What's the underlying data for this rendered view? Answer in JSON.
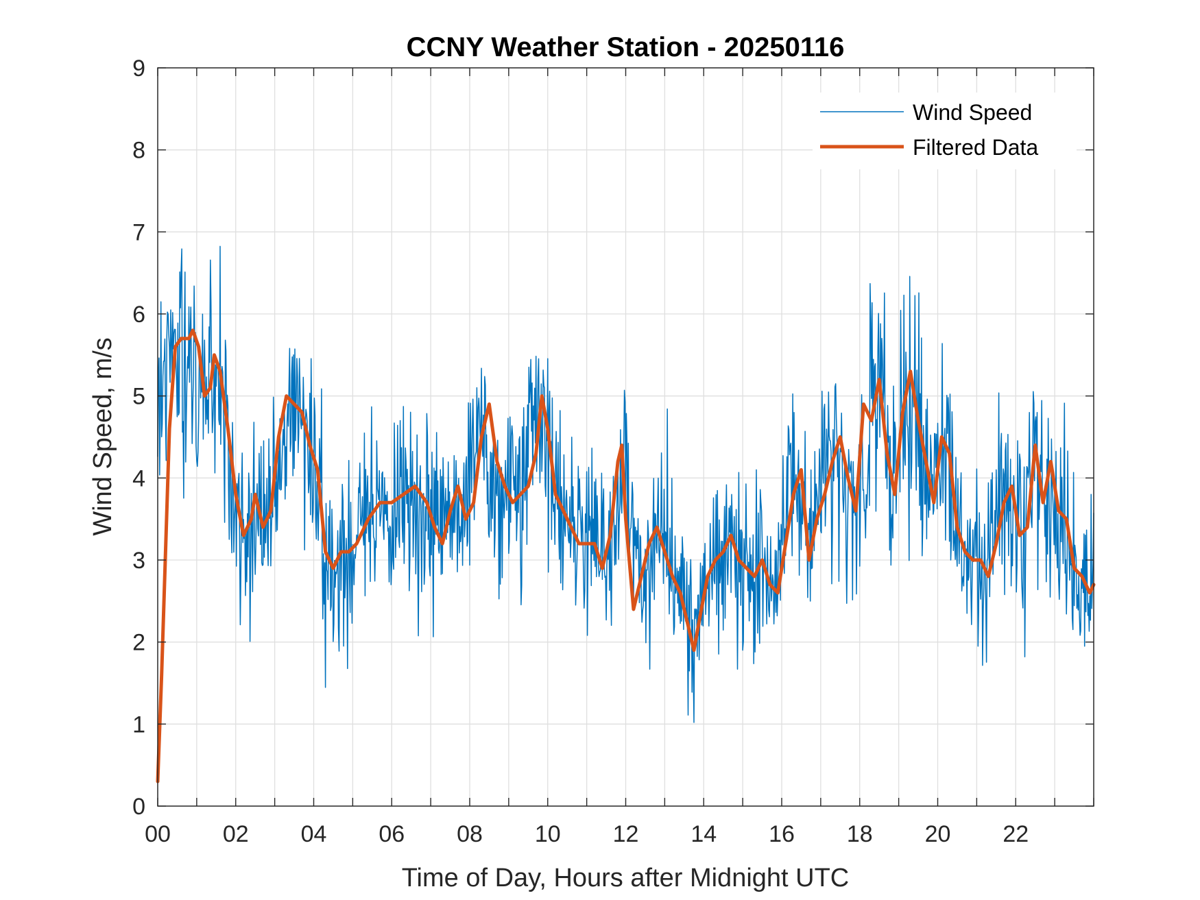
{
  "chart_data": {
    "type": "line",
    "title": "CCNY Weather Station - 20250116",
    "xlabel": "Time of Day, Hours after Midnight UTC",
    "ylabel": "Wind Speed, m/s",
    "xlim": [
      0,
      24
    ],
    "ylim": [
      0,
      9
    ],
    "grid": true,
    "legend_location": "top-right",
    "x_ticks": [
      0,
      2,
      4,
      6,
      8,
      10,
      12,
      14,
      16,
      18,
      20,
      22
    ],
    "x_tick_labels": [
      "00",
      "02",
      "04",
      "06",
      "08",
      "10",
      "12",
      "14",
      "16",
      "18",
      "20",
      "22"
    ],
    "y_ticks": [
      0,
      1,
      2,
      3,
      4,
      5,
      6,
      7,
      8,
      9
    ],
    "y_tick_labels": [
      "0",
      "1",
      "2",
      "3",
      "4",
      "5",
      "6",
      "7",
      "8",
      "9"
    ],
    "series": [
      {
        "name": "Wind Speed",
        "color": "#0072BD",
        "style": "thin-noisy",
        "x": [
          0,
          0.25,
          0.5,
          0.75,
          1,
          1.25,
          1.5,
          1.75,
          2,
          2.25,
          2.5,
          2.75,
          3,
          3.25,
          3.5,
          3.75,
          4,
          4.25,
          4.5,
          4.75,
          5,
          5.25,
          5.5,
          5.75,
          6,
          6.25,
          6.5,
          6.75,
          7,
          7.25,
          7.5,
          7.75,
          8,
          8.25,
          8.5,
          8.75,
          9,
          9.25,
          9.5,
          9.75,
          10,
          10.25,
          10.5,
          10.75,
          11,
          11.25,
          11.5,
          11.75,
          12,
          12.25,
          12.5,
          12.75,
          13,
          13.25,
          13.5,
          13.75,
          14,
          14.25,
          14.5,
          14.75,
          15,
          15.25,
          15.5,
          15.75,
          16,
          16.25,
          16.5,
          16.75,
          17,
          17.25,
          17.5,
          17.75,
          18,
          18.25,
          18.5,
          18.75,
          19,
          19.25,
          19.5,
          19.75,
          20,
          20.25,
          20.5,
          20.75,
          21,
          21.25,
          21.5,
          21.75,
          22,
          22.25,
          22.5,
          22.75,
          23,
          23.25,
          23.5,
          23.75,
          24
        ],
        "values": [
          5.0,
          5.4,
          5.6,
          5.7,
          5.3,
          5.0,
          5.3,
          4.5,
          3.6,
          3.3,
          3.5,
          3.4,
          3.9,
          4.7,
          4.9,
          4.7,
          4.3,
          3.2,
          2.9,
          3.0,
          3.1,
          3.3,
          3.5,
          3.6,
          3.7,
          3.8,
          3.7,
          3.5,
          3.3,
          3.7,
          3.8,
          3.5,
          4.2,
          4.8,
          4.1,
          3.8,
          3.8,
          3.9,
          4.4,
          4.9,
          4.3,
          3.7,
          3.5,
          3.3,
          3.2,
          3.1,
          3.0,
          3.5,
          4.2,
          3.0,
          2.6,
          3.1,
          3.3,
          2.9,
          2.6,
          2.0,
          2.6,
          3.0,
          3.1,
          3.1,
          3.0,
          2.9,
          2.9,
          2.7,
          3.3,
          4.0,
          3.4,
          3.2,
          3.9,
          4.2,
          4.4,
          3.9,
          3.6,
          4.6,
          5.0,
          4.2,
          4.3,
          5.0,
          4.6,
          4.2,
          4.3,
          4.5,
          3.4,
          3.1,
          3.0,
          2.9,
          3.3,
          3.8,
          3.3,
          3.4,
          4.2,
          3.9,
          3.5,
          3.3,
          2.8,
          2.7,
          2.6
        ]
      },
      {
        "name": "Filtered Data",
        "color": "#D95319",
        "style": "thick",
        "x": [
          0,
          0.1,
          0.3,
          0.45,
          0.6,
          0.8,
          0.9,
          1.05,
          1.2,
          1.35,
          1.45,
          1.6,
          1.8,
          2.0,
          2.2,
          2.4,
          2.5,
          2.7,
          2.9,
          3.1,
          3.3,
          3.5,
          3.7,
          3.9,
          4.1,
          4.3,
          4.5,
          4.7,
          4.9,
          5.1,
          5.4,
          5.7,
          6.0,
          6.3,
          6.6,
          6.9,
          7.1,
          7.3,
          7.5,
          7.7,
          7.9,
          8.1,
          8.3,
          8.5,
          8.7,
          8.9,
          9.1,
          9.3,
          9.5,
          9.7,
          9.85,
          10.0,
          10.2,
          10.4,
          10.6,
          10.8,
          11.0,
          11.2,
          11.4,
          11.6,
          11.8,
          11.9,
          12.0,
          12.2,
          12.4,
          12.6,
          12.8,
          13.0,
          13.2,
          13.4,
          13.6,
          13.75,
          13.9,
          14.1,
          14.3,
          14.5,
          14.7,
          14.9,
          15.1,
          15.3,
          15.5,
          15.7,
          15.9,
          16.1,
          16.3,
          16.5,
          16.7,
          16.9,
          17.1,
          17.3,
          17.5,
          17.7,
          17.9,
          18.1,
          18.3,
          18.5,
          18.7,
          18.9,
          19.1,
          19.3,
          19.5,
          19.7,
          19.9,
          20.1,
          20.3,
          20.5,
          20.7,
          20.9,
          21.1,
          21.3,
          21.5,
          21.7,
          21.9,
          22.1,
          22.3,
          22.5,
          22.7,
          22.9,
          23.1,
          23.3,
          23.5,
          23.7,
          23.9,
          24.0
        ],
        "values": [
          0.3,
          1.6,
          4.6,
          5.6,
          5.7,
          5.7,
          5.8,
          5.6,
          5.0,
          5.1,
          5.5,
          5.3,
          4.6,
          3.8,
          3.3,
          3.5,
          3.8,
          3.4,
          3.6,
          4.5,
          5.0,
          4.9,
          4.8,
          4.4,
          4.1,
          3.1,
          2.9,
          3.1,
          3.1,
          3.2,
          3.5,
          3.7,
          3.7,
          3.8,
          3.9,
          3.7,
          3.4,
          3.2,
          3.6,
          3.9,
          3.5,
          3.7,
          4.5,
          4.9,
          4.2,
          3.9,
          3.7,
          3.8,
          3.9,
          4.3,
          5.0,
          4.6,
          3.8,
          3.6,
          3.4,
          3.2,
          3.2,
          3.2,
          2.9,
          3.3,
          4.2,
          4.4,
          3.5,
          2.4,
          2.8,
          3.2,
          3.4,
          3.1,
          2.8,
          2.6,
          2.2,
          1.9,
          2.3,
          2.8,
          3.0,
          3.1,
          3.3,
          3.0,
          2.9,
          2.8,
          3.0,
          2.7,
          2.6,
          3.2,
          3.8,
          4.1,
          3.0,
          3.5,
          3.8,
          4.2,
          4.5,
          4.0,
          3.6,
          4.9,
          4.7,
          5.2,
          4.3,
          3.8,
          4.8,
          5.3,
          4.7,
          4.2,
          3.7,
          4.5,
          4.3,
          3.4,
          3.1,
          3.0,
          3.0,
          2.8,
          3.2,
          3.7,
          3.9,
          3.3,
          3.4,
          4.4,
          3.7,
          4.2,
          3.6,
          3.5,
          2.9,
          2.8,
          2.6,
          2.7
        ]
      }
    ]
  }
}
